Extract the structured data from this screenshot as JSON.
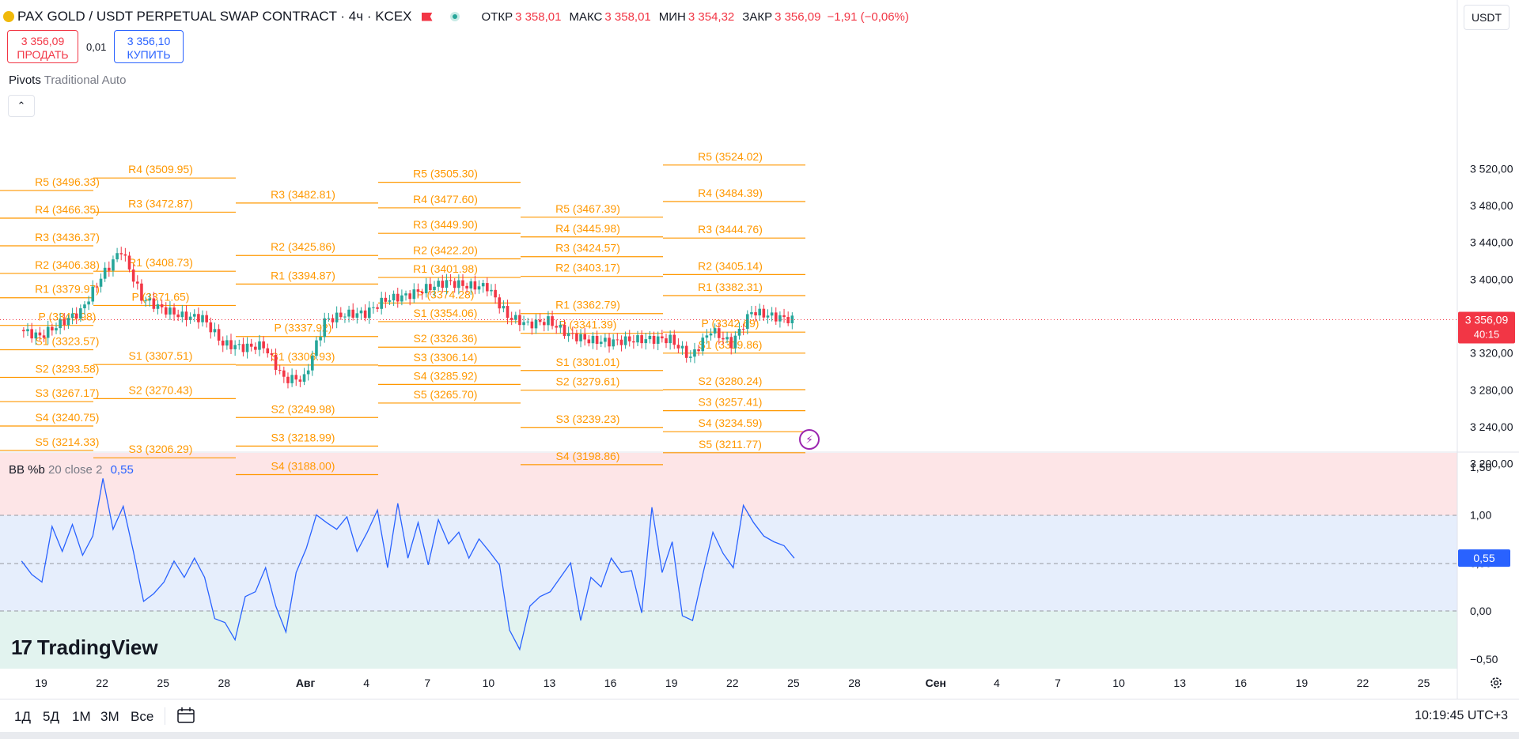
{
  "header": {
    "symbol": "PAX GOLD / USDT PERPETUAL SWAP CONTRACT · 4ч · KCEX",
    "open_label": "ОТКР",
    "open": "3 358,01",
    "high_label": "МАКС",
    "high": "3 358,01",
    "low_label": "МИН",
    "low": "3 354,32",
    "close_label": "ЗАКР",
    "close": "3 356,09",
    "change": "−1,91 (−0,06%)",
    "currency": "USDT"
  },
  "trade": {
    "sell_price": "3 356,09",
    "sell_label": "ПРОДАТЬ",
    "spread": "0,01",
    "buy_price": "3 356,10",
    "buy_label": "КУПИТЬ"
  },
  "indicators": {
    "pivots_name": "Pivots",
    "pivots_params": "Traditional Auto",
    "bb_name": "BB %b",
    "bb_params": "20 close 2",
    "bb_value": "0,55"
  },
  "price_tag": {
    "value": "3 356,09",
    "countdown": "40:15"
  },
  "bb_tag": "0,55",
  "logo_text": "TradingView",
  "bottom_bar": {
    "ranges": [
      "1Д",
      "5Д",
      "1М",
      "3М",
      "Все"
    ],
    "clock": "10:19:45 UTC+3"
  },
  "colors": {
    "up": "#26a69a",
    "down": "#f23645",
    "pivot": "#ff9800",
    "bb_line": "#2962ff",
    "tag_red": "#f23645"
  },
  "chart_data": [
    {
      "type": "candlestick",
      "title": "PAX GOLD / USDT PERPETUAL SWAP CONTRACT · 4ч · KCEX",
      "ylim": [
        3160,
        3545
      ],
      "y_ticks": [
        3200,
        3240,
        3280,
        3320,
        3360,
        3400,
        3440,
        3480,
        3520
      ],
      "y_tick_labels": [
        "3 200,00",
        "3 240,00",
        "3 280,00",
        "3 320,00",
        "3 360,00",
        "3 400,00",
        "3 440,00",
        "3 480,00",
        "3 520,00"
      ],
      "x_ticks": [
        "19",
        "22",
        "25",
        "28",
        "Авг",
        "4",
        "7",
        "10",
        "13",
        "16",
        "19",
        "22",
        "25",
        "28",
        "Сен",
        "4",
        "7",
        "10",
        "13",
        "16",
        "19",
        "22",
        "25"
      ],
      "x_tick_dates": [
        "2025-07-19",
        "2025-07-22",
        "2025-07-25",
        "2025-07-28",
        "2025-08-01",
        "2025-08-04",
        "2025-08-07",
        "2025-08-10",
        "2025-08-13",
        "2025-08-16",
        "2025-08-19",
        "2025-08-22",
        "2025-08-25",
        "2025-08-28",
        "2025-09-01",
        "2025-09-04",
        "2025-09-07",
        "2025-09-10",
        "2025-09-13",
        "2025-09-16",
        "2025-09-19",
        "2025-09-22",
        "2025-09-25"
      ],
      "close_path": [
        [
          "2025-07-18",
          3345
        ],
        [
          "2025-07-19",
          3338
        ],
        [
          "2025-07-20",
          3352
        ],
        [
          "2025-07-21",
          3365
        ],
        [
          "2025-07-22",
          3402
        ],
        [
          "2025-07-23",
          3432
        ],
        [
          "2025-07-24",
          3380
        ],
        [
          "2025-07-25",
          3368
        ],
        [
          "2025-07-26",
          3360
        ],
        [
          "2025-07-27",
          3358
        ],
        [
          "2025-07-28",
          3330
        ],
        [
          "2025-07-29",
          3326
        ],
        [
          "2025-07-30",
          3328
        ],
        [
          "2025-07-31",
          3292
        ],
        [
          "2025-08-01",
          3292
        ],
        [
          "2025-08-02",
          3355
        ],
        [
          "2025-08-03",
          3362
        ],
        [
          "2025-08-04",
          3363
        ],
        [
          "2025-08-05",
          3378
        ],
        [
          "2025-08-06",
          3382
        ],
        [
          "2025-08-07",
          3390
        ],
        [
          "2025-08-08",
          3397
        ],
        [
          "2025-08-09",
          3393
        ],
        [
          "2025-08-10",
          3392
        ],
        [
          "2025-08-11",
          3360
        ],
        [
          "2025-08-12",
          3351
        ],
        [
          "2025-08-13",
          3355
        ],
        [
          "2025-08-14",
          3340
        ],
        [
          "2025-08-15",
          3334
        ],
        [
          "2025-08-16",
          3332
        ],
        [
          "2025-08-17",
          3334
        ],
        [
          "2025-08-18",
          3335
        ],
        [
          "2025-08-19",
          3335
        ],
        [
          "2025-08-20",
          3315
        ],
        [
          "2025-08-21",
          3345
        ],
        [
          "2025-08-22",
          3330
        ],
        [
          "2025-08-23",
          3365
        ],
        [
          "2025-08-24",
          3360
        ],
        [
          "2025-08-25",
          3356
        ]
      ],
      "current_price": 3356.09,
      "pivot_labels": [
        {
          "label": "R5",
          "value": 3496.33
        },
        {
          "label": "R4",
          "value": 3466.35
        },
        {
          "label": "R3",
          "value": 3436.37
        },
        {
          "label": "R2",
          "value": 3406.38
        },
        {
          "label": "R1",
          "value": 3379.97
        },
        {
          "label": "P",
          "value": 3349.98
        },
        {
          "label": "S1",
          "value": 3323.57
        },
        {
          "label": "S2",
          "value": 3293.58
        },
        {
          "label": "S3",
          "value": 3267.17
        },
        {
          "label": "S4",
          "value": 3240.75
        },
        {
          "label": "S5",
          "value": 3214.33
        },
        {
          "label": "R4",
          "value": 3509.95
        },
        {
          "label": "R3",
          "value": 3472.87
        },
        {
          "label": "R1",
          "value": 3408.73
        },
        {
          "label": "P",
          "value": 3371.65
        },
        {
          "label": "S1",
          "value": 3307.51
        },
        {
          "label": "S2",
          "value": 3270.43
        },
        {
          "label": "S3",
          "value": 3206.29
        },
        {
          "label": "R3",
          "value": 3482.81
        },
        {
          "label": "R2",
          "value": 3425.86
        },
        {
          "label": "R1",
          "value": 3394.87
        },
        {
          "label": "P",
          "value": 3337.92
        },
        {
          "label": "S1",
          "value": 3306.93
        },
        {
          "label": "S2",
          "value": 3249.98
        },
        {
          "label": "S3",
          "value": 3218.99
        },
        {
          "label": "S4",
          "value": 3188.0
        },
        {
          "label": "R5",
          "value": 3505.3
        },
        {
          "label": "R4",
          "value": 3477.6
        },
        {
          "label": "R3",
          "value": 3449.9
        },
        {
          "label": "R2",
          "value": 3422.2
        },
        {
          "label": "R1",
          "value": 3401.98
        },
        {
          "label": "P",
          "value": 3374.28
        },
        {
          "label": "S1",
          "value": 3354.06
        },
        {
          "label": "S2",
          "value": 3326.36
        },
        {
          "label": "S3",
          "value": 3306.14
        },
        {
          "label": "S4",
          "value": 3285.92
        },
        {
          "label": "S5",
          "value": 3265.7
        },
        {
          "label": "R5",
          "value": 3467.39
        },
        {
          "label": "R4",
          "value": 3445.98
        },
        {
          "label": "R3",
          "value": 3424.57
        },
        {
          "label": "R2",
          "value": 3403.17
        },
        {
          "label": "R1",
          "value": 3362.79
        },
        {
          "label": "P",
          "value": 3341.39
        },
        {
          "label": "S1",
          "value": 3301.01
        },
        {
          "label": "S2",
          "value": 3279.61
        },
        {
          "label": "S3",
          "value": 3239.23
        },
        {
          "label": "S4",
          "value": 3198.86
        },
        {
          "label": "R5",
          "value": 3524.02
        },
        {
          "label": "R4",
          "value": 3484.39
        },
        {
          "label": "R3",
          "value": 3444.76
        },
        {
          "label": "R2",
          "value": 3405.14
        },
        {
          "label": "R1",
          "value": 3382.31
        },
        {
          "label": "P",
          "value": 3342.69
        },
        {
          "label": "S1",
          "value": 3319.86
        },
        {
          "label": "S2",
          "value": 3280.24
        },
        {
          "label": "S3",
          "value": 3257.41
        },
        {
          "label": "S4",
          "value": 3234.59
        },
        {
          "label": "S5",
          "value": 3211.77
        }
      ]
    },
    {
      "type": "line",
      "title": "BB %b 20 close 2",
      "ylim": [
        -0.62,
        1.6
      ],
      "y_ticks": [
        1.5,
        1.0,
        0.5,
        0.0,
        -0.5
      ],
      "y_tick_labels": [
        "1,50",
        "1,00",
        "0,50",
        "0,00",
        "−0,50"
      ],
      "bands": {
        "upper": 1.0,
        "middle": 0.5,
        "lower": 0.0
      },
      "series": [
        {
          "points": [
            [
              "2025-07-18",
              0.52
            ],
            [
              "2025-07-18T12",
              0.38
            ],
            [
              "2025-07-19",
              0.3
            ],
            [
              "2025-07-19T12",
              0.88
            ],
            [
              "2025-07-20",
              0.62
            ],
            [
              "2025-07-20T12",
              0.9
            ],
            [
              "2025-07-21",
              0.58
            ],
            [
              "2025-07-21T12",
              0.78
            ],
            [
              "2025-07-22",
              1.38
            ],
            [
              "2025-07-22T12",
              0.85
            ],
            [
              "2025-07-23",
              1.09
            ],
            [
              "2025-07-23T12",
              0.62
            ],
            [
              "2025-07-24",
              0.1
            ],
            [
              "2025-07-24T12",
              0.18
            ],
            [
              "2025-07-25",
              0.3
            ],
            [
              "2025-07-25T12",
              0.52
            ],
            [
              "2025-07-26",
              0.35
            ],
            [
              "2025-07-26T12",
              0.55
            ],
            [
              "2025-07-27",
              0.35
            ],
            [
              "2025-07-27T12",
              -0.08
            ],
            [
              "2025-07-28",
              -0.12
            ],
            [
              "2025-07-28T12",
              -0.3
            ],
            [
              "2025-07-29",
              0.15
            ],
            [
              "2025-07-29T12",
              0.2
            ],
            [
              "2025-07-30",
              0.45
            ],
            [
              "2025-07-30T12",
              0.05
            ],
            [
              "2025-07-31",
              -0.22
            ],
            [
              "2025-07-31T12",
              0.4
            ],
            [
              "2025-08-01",
              0.65
            ],
            [
              "2025-08-01T12",
              1.0
            ],
            [
              "2025-08-02",
              0.92
            ],
            [
              "2025-08-02T12",
              0.85
            ],
            [
              "2025-08-03",
              0.98
            ],
            [
              "2025-08-03T12",
              0.62
            ],
            [
              "2025-08-04",
              0.82
            ],
            [
              "2025-08-04T12",
              1.05
            ],
            [
              "2025-08-05",
              0.45
            ],
            [
              "2025-08-05T12",
              1.12
            ],
            [
              "2025-08-06",
              0.55
            ],
            [
              "2025-08-06T12",
              0.92
            ],
            [
              "2025-08-07",
              0.48
            ],
            [
              "2025-08-07T12",
              0.95
            ],
            [
              "2025-08-08",
              0.7
            ],
            [
              "2025-08-08T12",
              0.82
            ],
            [
              "2025-08-09",
              0.55
            ],
            [
              "2025-08-09T12",
              0.75
            ],
            [
              "2025-08-10",
              0.62
            ],
            [
              "2025-08-10T12",
              0.48
            ],
            [
              "2025-08-11",
              -0.2
            ],
            [
              "2025-08-11T12",
              -0.4
            ],
            [
              "2025-08-12",
              0.05
            ],
            [
              "2025-08-12T12",
              0.15
            ],
            [
              "2025-08-13",
              0.2
            ],
            [
              "2025-08-13T12",
              0.35
            ],
            [
              "2025-08-14",
              0.5
            ],
            [
              "2025-08-14T12",
              -0.1
            ],
            [
              "2025-08-15",
              0.35
            ],
            [
              "2025-08-15T12",
              0.25
            ],
            [
              "2025-08-16",
              0.55
            ],
            [
              "2025-08-16T12",
              0.4
            ],
            [
              "2025-08-17",
              0.42
            ],
            [
              "2025-08-17T12",
              -0.02
            ],
            [
              "2025-08-18",
              1.08
            ],
            [
              "2025-08-18T12",
              0.4
            ],
            [
              "2025-08-19",
              0.72
            ],
            [
              "2025-08-19T12",
              -0.05
            ],
            [
              "2025-08-20",
              -0.1
            ],
            [
              "2025-08-20T12",
              0.38
            ],
            [
              "2025-08-21",
              0.82
            ],
            [
              "2025-08-21T12",
              0.6
            ],
            [
              "2025-08-22",
              0.45
            ],
            [
              "2025-08-22T12",
              1.1
            ],
            [
              "2025-08-23",
              0.92
            ],
            [
              "2025-08-23T12",
              0.78
            ],
            [
              "2025-08-24",
              0.72
            ],
            [
              "2025-08-24T12",
              0.68
            ],
            [
              "2025-08-25",
              0.55
            ]
          ]
        }
      ]
    }
  ]
}
